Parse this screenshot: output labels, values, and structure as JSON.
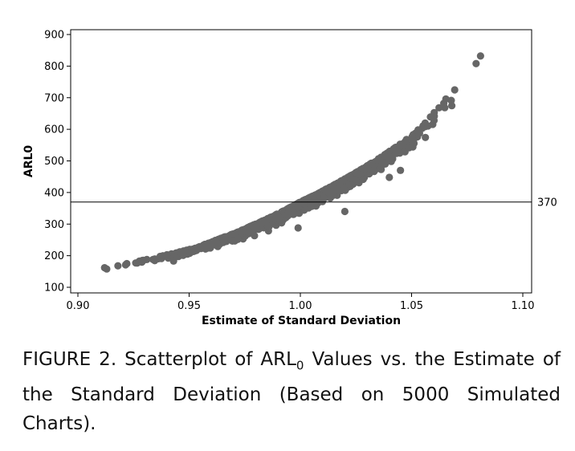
{
  "chart_data": {
    "type": "scatter",
    "xlabel": "Estimate of Standard Deviation",
    "ylabel": "ARL0",
    "xlim": [
      0.9,
      1.1
    ],
    "ylim": [
      100,
      900
    ],
    "x_ticks": [
      "0.90",
      "0.95",
      "1.00",
      "1.05",
      "1.10"
    ],
    "y_ticks": [
      "100",
      "200",
      "300",
      "400",
      "500",
      "600",
      "700",
      "800",
      "900"
    ],
    "reference_line": {
      "y": 370,
      "label": "370"
    },
    "point_color": "#666666",
    "n_points": 5000,
    "curve_estimate": {
      "x": [
        0.91,
        0.95,
        1.0,
        1.05,
        1.08
      ],
      "y": [
        160,
        220,
        370,
        580,
        830
      ]
    },
    "outliers": {
      "x": [
        0.943,
        0.999,
        1.02,
        1.04,
        1.045,
        1.079,
        1.081
      ],
      "y": [
        183,
        288,
        340,
        448,
        470,
        808,
        832
      ]
    }
  },
  "caption": {
    "prefix": "FIGURE 2. Scatterplot of ARL",
    "subscript": "0",
    "suffix": " Values vs. the Estimate of the Standard Deviation (Based on 5000 Simulated Charts)."
  }
}
